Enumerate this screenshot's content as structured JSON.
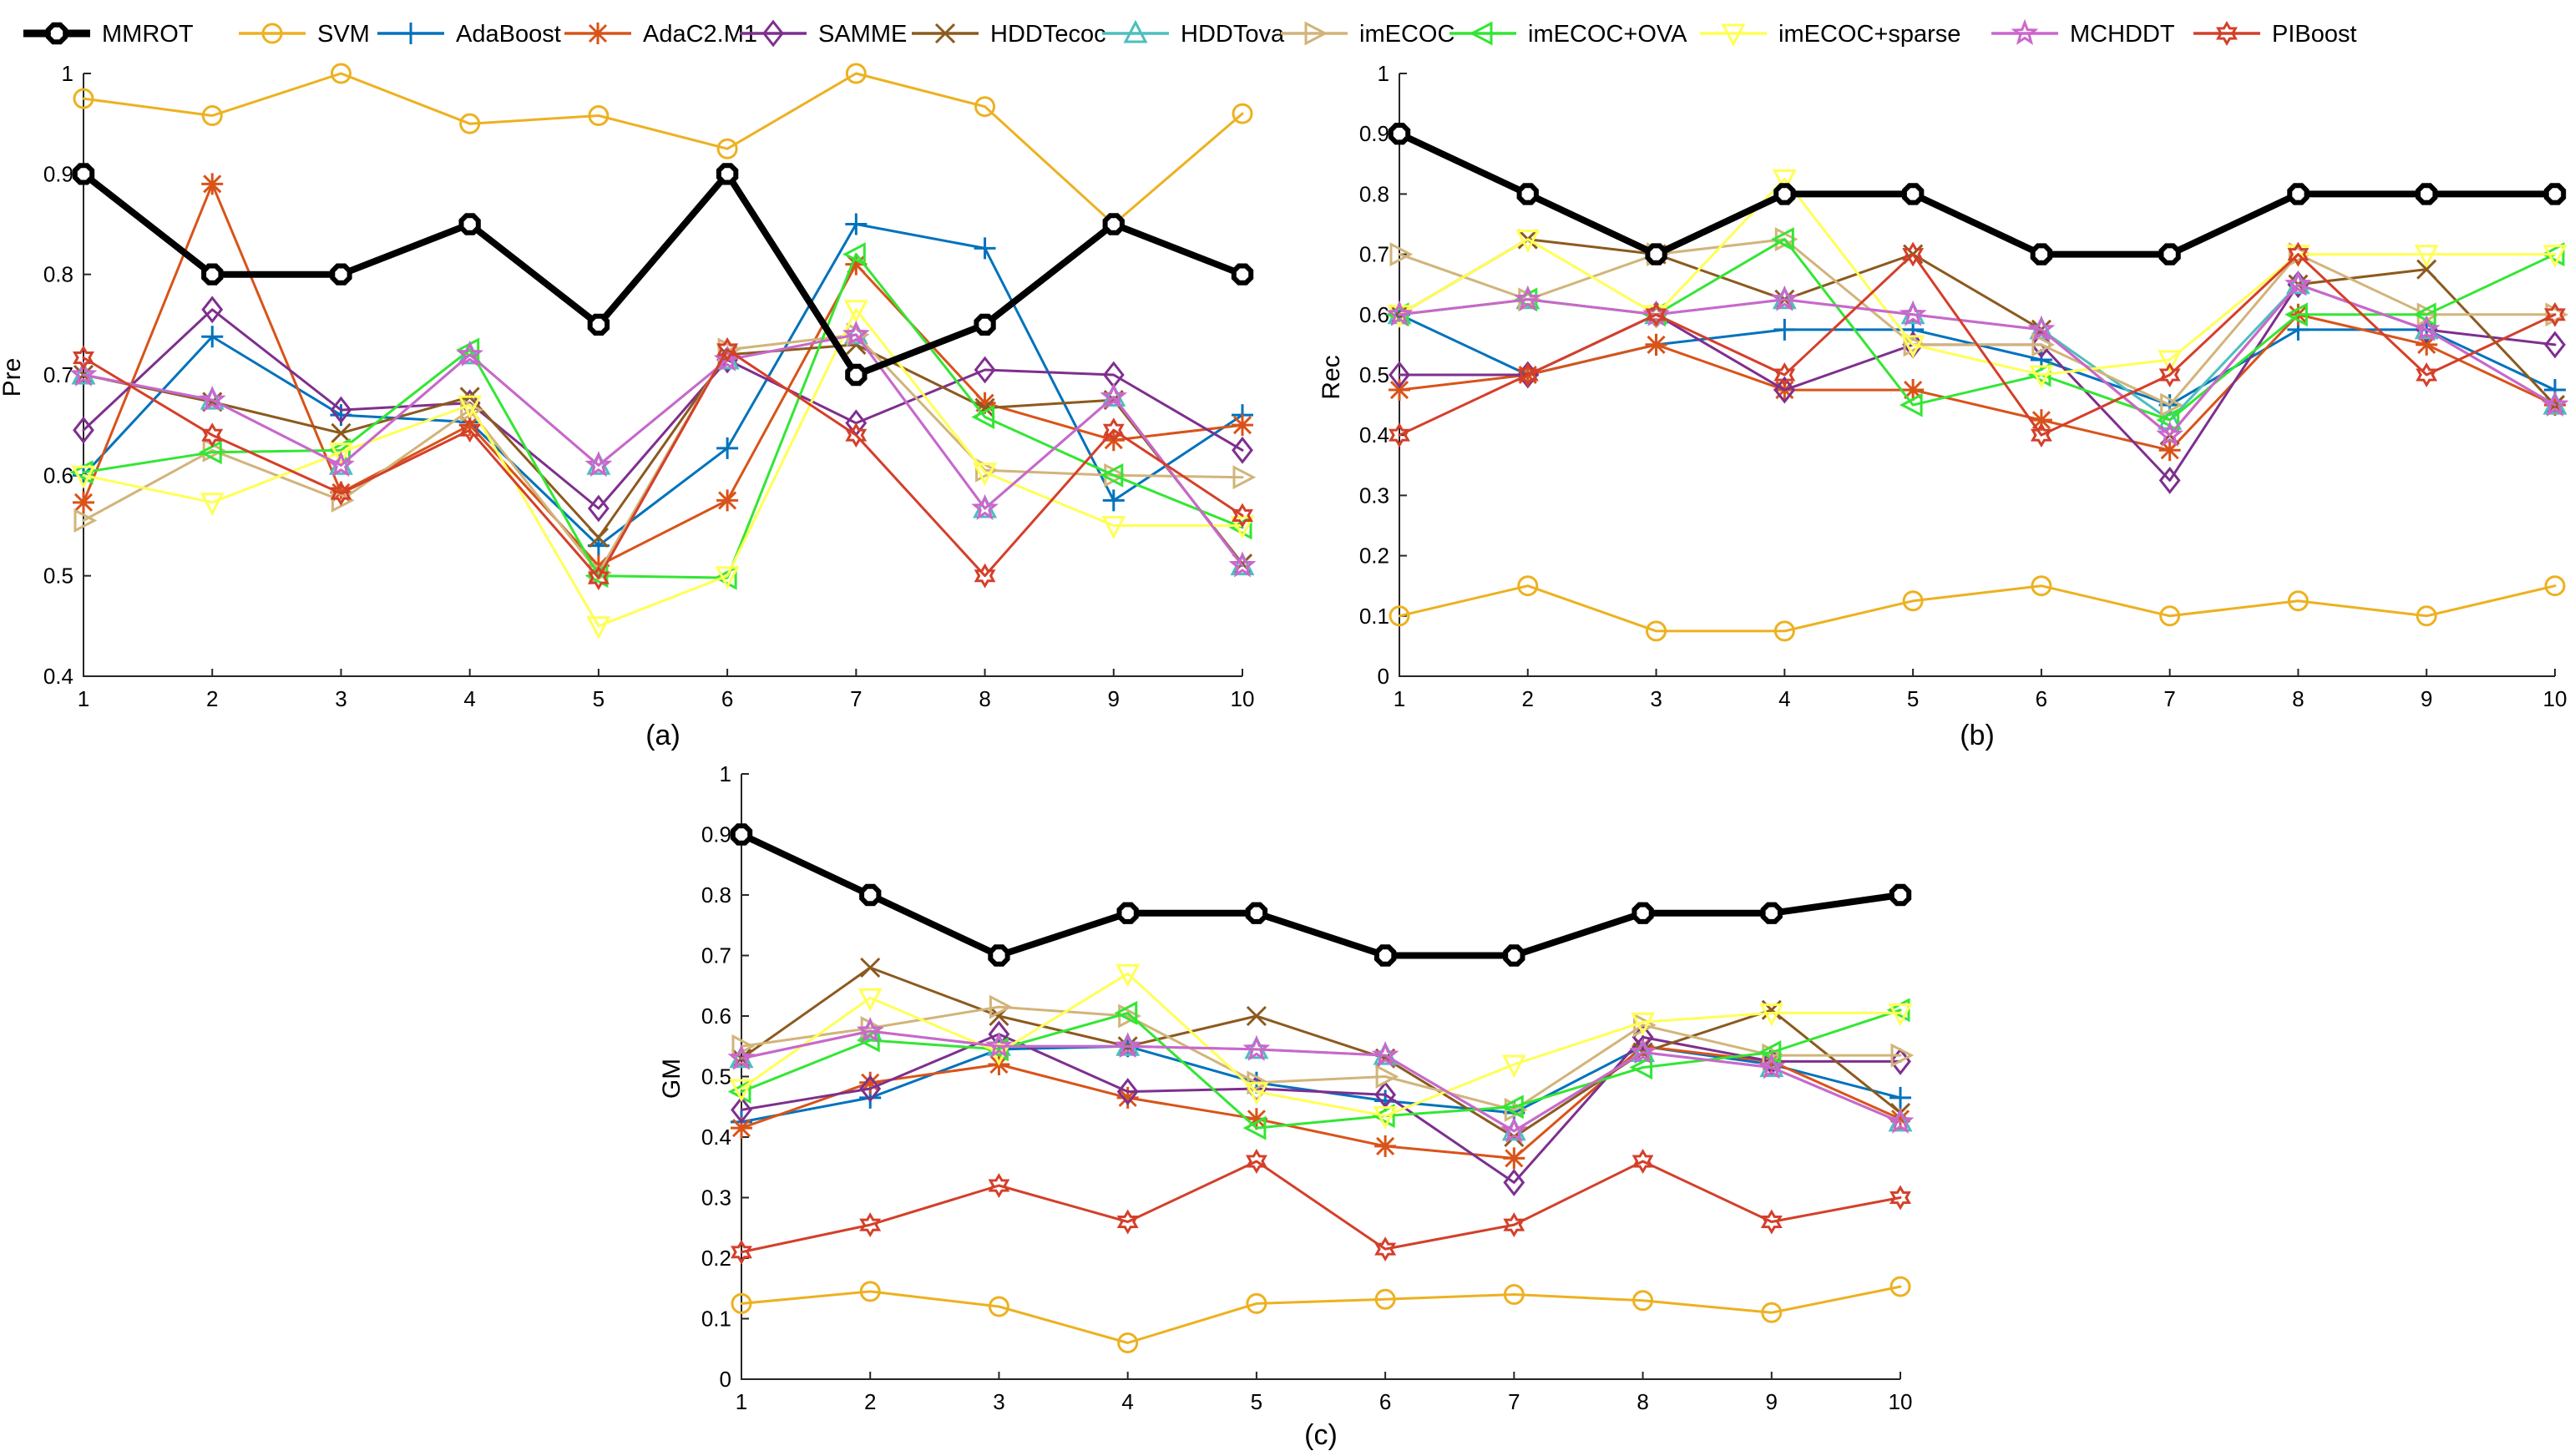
{
  "colors": {
    "MMROT": "#000000",
    "SVM": "#EDB120",
    "AdaBoost": "#0072BD",
    "AdaC2.M1": "#D95319",
    "SAMME": "#7E2F8E",
    "HDDTecoc": "#8C5A1E",
    "HDDTova": "#4DBEBE",
    "imECOC": "#D2B47A",
    "imECOC+OVA": "#33E633",
    "imECOC+sparse": "#FFFF55",
    "MCHDDT": "#CC66CC",
    "PIBoost": "#D43F2A"
  },
  "legend": [
    {
      "name": "MMROT",
      "marker": "octagon-bold"
    },
    {
      "name": "SVM",
      "marker": "circle"
    },
    {
      "name": "AdaBoost",
      "marker": "plus"
    },
    {
      "name": "AdaC2.M1",
      "marker": "asterisk"
    },
    {
      "name": "SAMME",
      "marker": "diamond"
    },
    {
      "name": "HDDTecoc",
      "marker": "x"
    },
    {
      "name": "HDDTova",
      "marker": "triangle-up"
    },
    {
      "name": "imECOC",
      "marker": "triangle-right"
    },
    {
      "name": "imECOC+OVA",
      "marker": "triangle-left"
    },
    {
      "name": "imECOC+sparse",
      "marker": "triangle-down"
    },
    {
      "name": "MCHDDT",
      "marker": "star"
    },
    {
      "name": "PIBoost",
      "marker": "hexagram"
    }
  ],
  "chart_data": [
    {
      "type": "line",
      "panel": "(a)",
      "ylabel": "Pre",
      "xlabel": "",
      "xlim": [
        1,
        10
      ],
      "ylim": [
        0.4,
        1
      ],
      "xticks": [
        "1",
        "2",
        "3",
        "4",
        "5",
        "6",
        "7",
        "8",
        "9",
        "10"
      ],
      "yticks": [
        "0.4",
        "0.5",
        "0.6",
        "0.7",
        "0.8",
        "0.9",
        "1"
      ],
      "x": [
        1,
        2,
        3,
        4,
        5,
        6,
        7,
        8,
        9,
        10
      ],
      "series": [
        {
          "name": "SVM",
          "values": [
            0.975,
            0.958,
            1.0,
            0.95,
            0.958,
            0.925,
            1.0,
            0.967,
            0.85,
            0.96
          ]
        },
        {
          "name": "AdaBoost",
          "values": [
            0.6,
            0.738,
            0.66,
            0.653,
            0.53,
            0.627,
            0.85,
            0.826,
            0.575,
            0.66
          ]
        },
        {
          "name": "AdaC2.M1",
          "values": [
            0.573,
            0.89,
            0.583,
            0.65,
            0.51,
            0.575,
            0.81,
            0.672,
            0.635,
            0.65
          ]
        },
        {
          "name": "SAMME",
          "values": [
            0.645,
            0.765,
            0.665,
            0.672,
            0.567,
            0.715,
            0.652,
            0.705,
            0.7,
            0.625
          ]
        },
        {
          "name": "HDDTecoc",
          "values": [
            0.7,
            0.673,
            0.642,
            0.678,
            0.538,
            0.72,
            0.73,
            0.667,
            0.675,
            0.512
          ]
        },
        {
          "name": "HDDTova",
          "values": [
            0.7,
            0.675,
            0.61,
            0.72,
            0.61,
            0.715,
            0.74,
            0.567,
            0.678,
            0.51
          ]
        },
        {
          "name": "imECOC",
          "values": [
            0.555,
            0.625,
            0.575,
            0.665,
            0.503,
            0.725,
            0.74,
            0.605,
            0.6,
            0.598
          ]
        },
        {
          "name": "imECOC+OVA",
          "values": [
            0.603,
            0.623,
            0.625,
            0.725,
            0.5,
            0.498,
            0.82,
            0.658,
            0.6,
            0.548
          ]
        },
        {
          "name": "imECOC+sparse",
          "values": [
            0.6,
            0.573,
            0.623,
            0.67,
            0.45,
            0.5,
            0.765,
            0.603,
            0.55,
            0.55
          ]
        },
        {
          "name": "MCHDDT",
          "values": [
            0.7,
            0.675,
            0.61,
            0.72,
            0.61,
            0.715,
            0.74,
            0.567,
            0.678,
            0.51
          ]
        },
        {
          "name": "PIBoost",
          "values": [
            0.717,
            0.64,
            0.582,
            0.645,
            0.498,
            0.725,
            0.64,
            0.5,
            0.645,
            0.56
          ]
        },
        {
          "name": "MMROT",
          "values": [
            0.9,
            0.8,
            0.8,
            0.85,
            0.75,
            0.9,
            0.7,
            0.75,
            0.85,
            0.8
          ]
        }
      ]
    },
    {
      "type": "line",
      "panel": "(b)",
      "ylabel": "Rec",
      "xlabel": "",
      "xlim": [
        1,
        10
      ],
      "ylim": [
        0,
        1
      ],
      "xticks": [
        "1",
        "2",
        "3",
        "4",
        "5",
        "6",
        "7",
        "8",
        "9",
        "10"
      ],
      "yticks": [
        "0",
        "0.1",
        "0.2",
        "0.3",
        "0.4",
        "0.5",
        "0.6",
        "0.7",
        "0.8",
        "0.9",
        "1"
      ],
      "x": [
        1,
        2,
        3,
        4,
        5,
        6,
        7,
        8,
        9,
        10
      ],
      "series": [
        {
          "name": "SVM",
          "values": [
            0.1,
            0.15,
            0.075,
            0.075,
            0.125,
            0.15,
            0.1,
            0.125,
            0.1,
            0.15
          ]
        },
        {
          "name": "AdaBoost",
          "values": [
            0.6,
            0.5,
            0.55,
            0.575,
            0.575,
            0.525,
            0.45,
            0.575,
            0.575,
            0.475
          ]
        },
        {
          "name": "AdaC2.M1",
          "values": [
            0.475,
            0.5,
            0.55,
            0.475,
            0.475,
            0.425,
            0.375,
            0.6,
            0.55,
            0.45
          ]
        },
        {
          "name": "SAMME",
          "values": [
            0.5,
            0.5,
            0.6,
            0.475,
            0.55,
            0.55,
            0.325,
            0.65,
            0.575,
            0.55
          ]
        },
        {
          "name": "HDDTecoc",
          "values": [
            0.6,
            0.725,
            0.7,
            0.625,
            0.7,
            0.575,
            0.4,
            0.65,
            0.675,
            0.45
          ]
        },
        {
          "name": "HDDTova",
          "values": [
            0.6,
            0.625,
            0.6,
            0.625,
            0.6,
            0.575,
            0.425,
            0.65,
            0.575,
            0.45
          ]
        },
        {
          "name": "imECOC",
          "values": [
            0.7,
            0.625,
            0.7,
            0.725,
            0.55,
            0.55,
            0.45,
            0.7,
            0.6,
            0.6
          ]
        },
        {
          "name": "imECOC+OVA",
          "values": [
            0.6,
            0.625,
            0.6,
            0.725,
            0.45,
            0.5,
            0.425,
            0.6,
            0.6,
            0.7
          ]
        },
        {
          "name": "imECOC+sparse",
          "values": [
            0.6,
            0.725,
            0.6,
            0.825,
            0.55,
            0.5,
            0.525,
            0.7,
            0.7,
            0.7
          ]
        },
        {
          "name": "MCHDDT",
          "values": [
            0.6,
            0.625,
            0.6,
            0.625,
            0.6,
            0.575,
            0.4,
            0.65,
            0.575,
            0.45
          ]
        },
        {
          "name": "PIBoost",
          "values": [
            0.4,
            0.5,
            0.6,
            0.5,
            0.7,
            0.4,
            0.5,
            0.7,
            0.5,
            0.6
          ]
        },
        {
          "name": "MMROT",
          "values": [
            0.9,
            0.8,
            0.7,
            0.8,
            0.8,
            0.7,
            0.7,
            0.8,
            0.8,
            0.8
          ]
        }
      ]
    },
    {
      "type": "line",
      "panel": "(c)",
      "ylabel": "GM",
      "xlabel": "",
      "xlim": [
        1,
        10
      ],
      "ylim": [
        0,
        1
      ],
      "xticks": [
        "1",
        "2",
        "3",
        "4",
        "5",
        "6",
        "7",
        "8",
        "9",
        "10"
      ],
      "yticks": [
        "0",
        "0.1",
        "0.2",
        "0.3",
        "0.4",
        "0.5",
        "0.6",
        "0.7",
        "0.8",
        "0.9",
        "1"
      ],
      "x": [
        1,
        2,
        3,
        4,
        5,
        6,
        7,
        8,
        9,
        10
      ],
      "series": [
        {
          "name": "SVM",
          "values": [
            0.125,
            0.145,
            0.12,
            0.06,
            0.125,
            0.132,
            0.14,
            0.13,
            0.11,
            0.153
          ]
        },
        {
          "name": "AdaBoost",
          "values": [
            0.425,
            0.465,
            0.545,
            0.55,
            0.49,
            0.46,
            0.44,
            0.55,
            0.52,
            0.465
          ]
        },
        {
          "name": "AdaC2.M1",
          "values": [
            0.415,
            0.49,
            0.52,
            0.465,
            0.43,
            0.385,
            0.365,
            0.55,
            0.525,
            0.43
          ]
        },
        {
          "name": "SAMME",
          "values": [
            0.445,
            0.48,
            0.57,
            0.475,
            0.48,
            0.47,
            0.325,
            0.565,
            0.525,
            0.525
          ]
        },
        {
          "name": "HDDTecoc",
          "values": [
            0.53,
            0.68,
            0.6,
            0.55,
            0.6,
            0.53,
            0.4,
            0.54,
            0.61,
            0.44
          ]
        },
        {
          "name": "HDDTova",
          "values": [
            0.53,
            0.575,
            0.55,
            0.55,
            0.545,
            0.535,
            0.41,
            0.54,
            0.515,
            0.425
          ]
        },
        {
          "name": "imECOC",
          "values": [
            0.55,
            0.58,
            0.615,
            0.6,
            0.49,
            0.5,
            0.445,
            0.585,
            0.535,
            0.535
          ]
        },
        {
          "name": "imECOC+OVA",
          "values": [
            0.475,
            0.56,
            0.545,
            0.605,
            0.415,
            0.435,
            0.45,
            0.515,
            0.54,
            0.61
          ]
        },
        {
          "name": "imECOC+sparse",
          "values": [
            0.48,
            0.63,
            0.54,
            0.67,
            0.475,
            0.435,
            0.52,
            0.59,
            0.605,
            0.605
          ]
        },
        {
          "name": "MCHDDT",
          "values": [
            0.53,
            0.575,
            0.55,
            0.55,
            0.545,
            0.535,
            0.41,
            0.54,
            0.515,
            0.425
          ]
        },
        {
          "name": "PIBoost",
          "values": [
            0.21,
            0.255,
            0.32,
            0.26,
            0.36,
            0.215,
            0.255,
            0.36,
            0.26,
            0.3
          ]
        },
        {
          "name": "MMROT",
          "values": [
            0.9,
            0.8,
            0.7,
            0.77,
            0.77,
            0.7,
            0.7,
            0.77,
            0.77,
            0.8
          ]
        }
      ]
    }
  ]
}
